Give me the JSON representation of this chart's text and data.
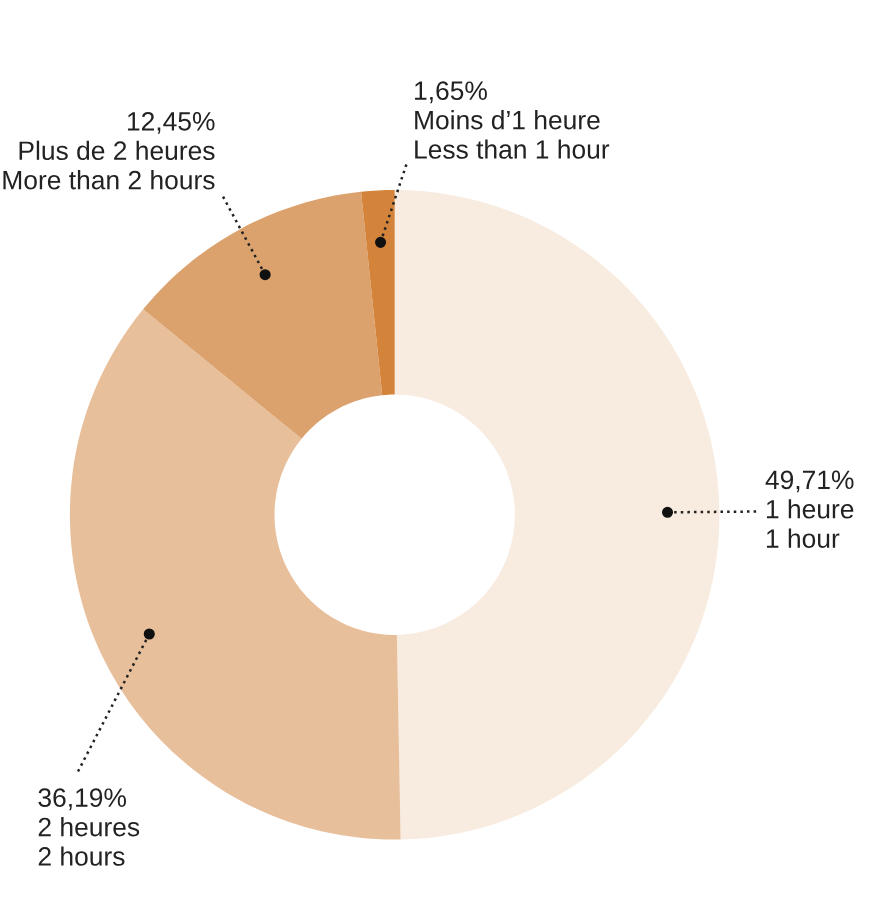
{
  "chart_data": {
    "type": "donut",
    "categories": [
      "1 heure\n1 hour",
      "2 heures\n2 hours",
      "Plus de 2 heures\nMore than 2 hours",
      "Moins d’1 heure\nLess than 1 hour"
    ],
    "values": [
      49.71,
      36.19,
      12.45,
      1.65
    ],
    "value_labels": [
      "49,71%",
      "36,19%",
      "12,45%",
      "1,65%"
    ],
    "colors": [
      "#f8ebdf",
      "#e8bf9b",
      "#dca26d",
      "#d4833a"
    ],
    "legend": false
  }
}
